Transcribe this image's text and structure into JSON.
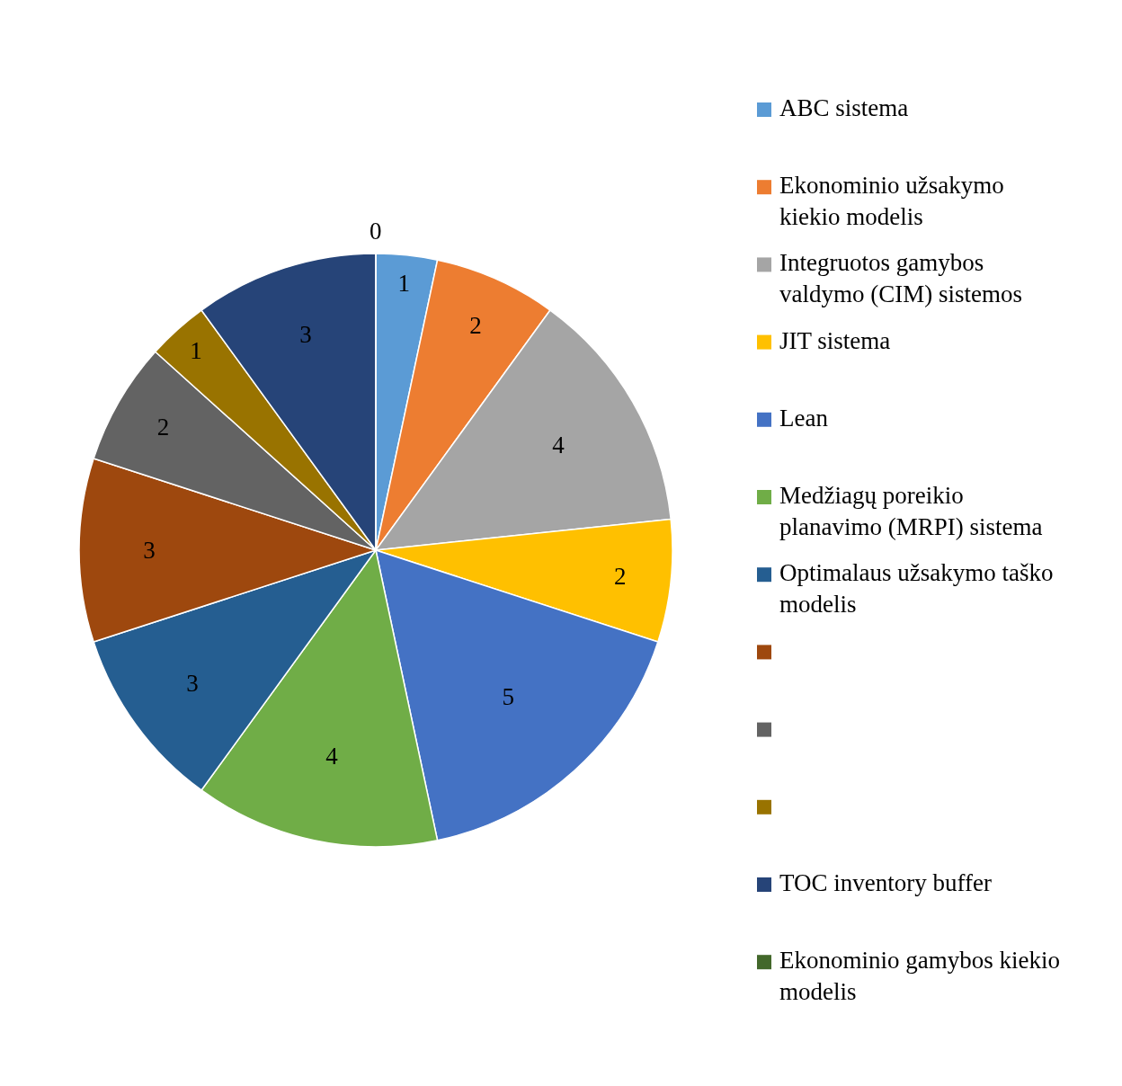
{
  "chart_data": {
    "type": "pie",
    "categories": [
      "ABC sistema",
      "Ekonominio užsakymo kiekio modelis",
      "Integruotos gamybos valdymo (CIM) sistemos",
      "JIT sistema",
      "Lean",
      "Medžiagų poreikio planavimo (MRPI) sistema",
      "Optimalaus užsakymo taško modelis",
      null,
      null,
      null,
      "TOC inventory buffer",
      "Ekonominio gamybos kiekio modelis"
    ],
    "values": [
      1,
      2,
      4,
      2,
      5,
      4,
      3,
      3,
      2,
      1,
      3,
      0
    ],
    "colors": [
      "#5b9bd5",
      "#ed7d31",
      "#a5a5a5",
      "#ffc000",
      "#4472c4",
      "#70ad47",
      "#255e91",
      "#9e480e",
      "#636363",
      "#997300",
      "#264478",
      "#43682b"
    ],
    "value_labels": [
      "1",
      "2",
      "4",
      "2",
      "5",
      "4",
      "3",
      "3",
      "2",
      "1",
      "3",
      "0"
    ],
    "legend": "right"
  }
}
